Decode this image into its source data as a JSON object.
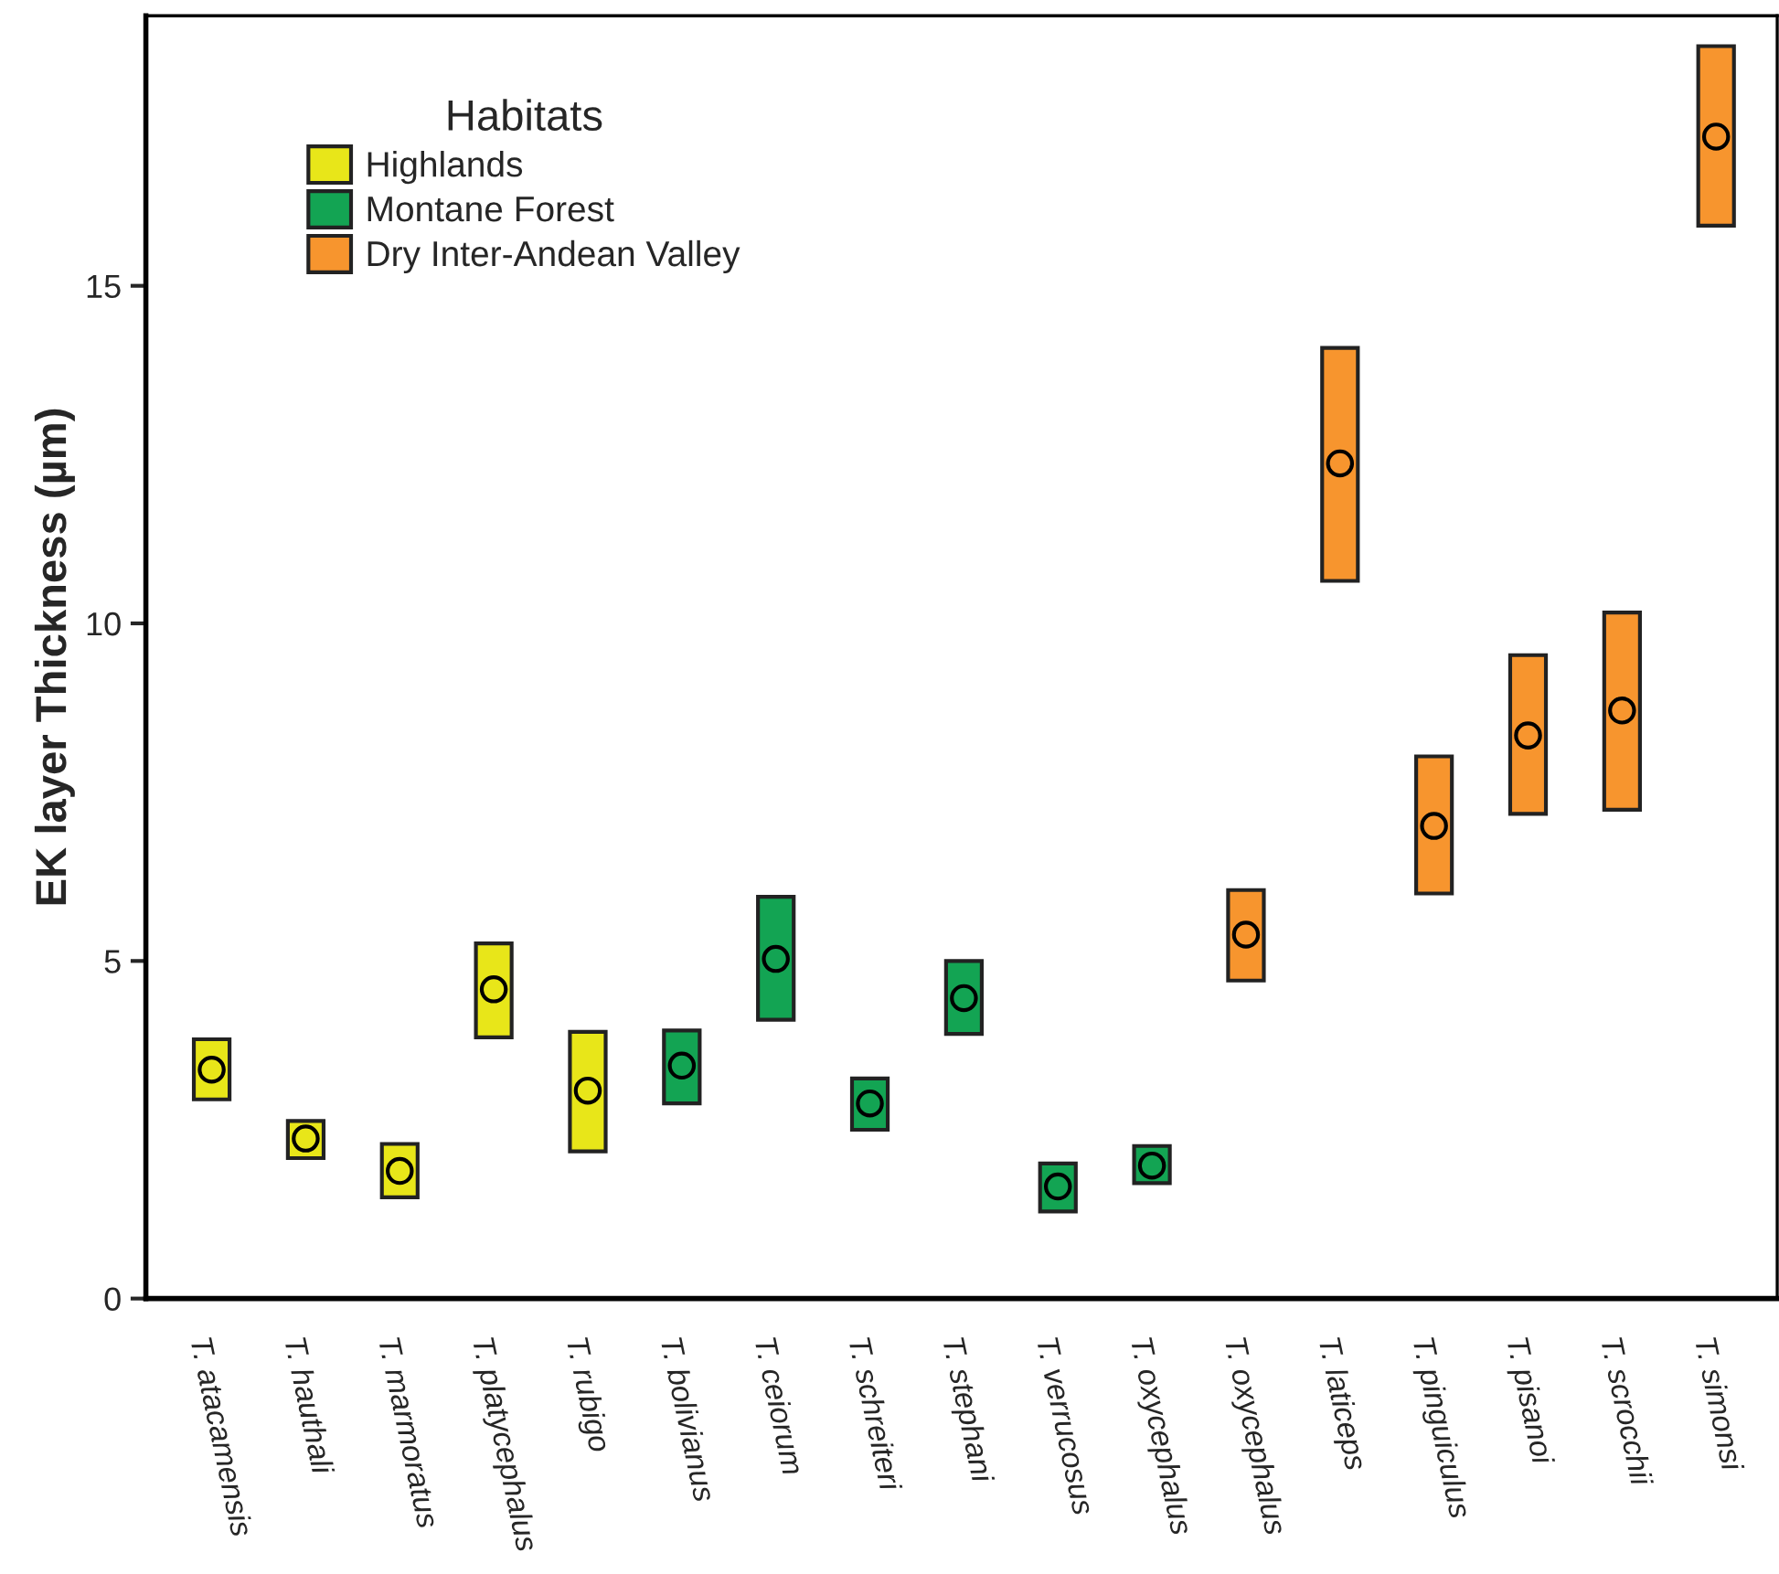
{
  "chart_data": {
    "type": "bar",
    "ylabel": "EK layer Thickness (µm)",
    "legend_title": "Habitats",
    "legend": "top left",
    "grid": false,
    "categories": [
      "T. atacamensis",
      "T. hauthali",
      "T. marmoratus",
      "T. platycephalus",
      "T. rubigo",
      "T. bolivianus",
      "T. ceiorum",
      "T. schreiteri",
      "T. stephani",
      "T. verrucosus",
      "T. oxycephalus",
      "T. oxycephalus",
      "T. laticeps",
      "T. pinguiculus",
      "T. pisanoi",
      "T. scrocchii",
      "T. simonsi"
    ],
    "ylim": [
      0,
      19
    ],
    "yticks": [
      0,
      5,
      10,
      15
    ],
    "series": [
      {
        "name": "Highlands",
        "color": "#e8e619",
        "base": [
          2.95,
          2.08,
          1.5,
          3.87,
          2.18,
          null,
          null,
          null,
          null,
          null,
          null,
          null,
          null,
          null,
          null,
          null,
          null
        ],
        "values": [
          0.89,
          0.55,
          0.79,
          1.39,
          1.77,
          null,
          null,
          null,
          null,
          null,
          null,
          null,
          null,
          null,
          null,
          null,
          null
        ]
      },
      {
        "name": "Montane Forest",
        "color": "#13a453",
        "base": [
          null,
          null,
          null,
          null,
          null,
          2.89,
          4.13,
          2.5,
          3.92,
          1.29,
          1.71,
          null,
          null,
          null,
          null,
          null,
          null
        ],
        "values": [
          null,
          null,
          null,
          null,
          null,
          1.08,
          1.82,
          0.76,
          1.08,
          0.71,
          0.55,
          null,
          null,
          null,
          null,
          null,
          null
        ]
      },
      {
        "name": "Dry Inter-Andean Valley",
        "color": "#f7952e",
        "base": [
          null,
          null,
          null,
          null,
          null,
          null,
          null,
          null,
          null,
          null,
          null,
          4.71,
          10.63,
          6.0,
          7.18,
          7.24,
          15.89
        ],
        "values": [
          null,
          null,
          null,
          null,
          null,
          null,
          null,
          null,
          null,
          null,
          null,
          1.34,
          3.45,
          2.03,
          2.35,
          2.92,
          2.66
        ]
      },
      {
        "type": "scatter",
        "marker": "circle",
        "color": "#000000",
        "values": [
          3.39,
          2.37,
          1.89,
          4.58,
          3.08,
          3.45,
          5.03,
          2.89,
          4.45,
          1.66,
          1.97,
          5.39,
          12.37,
          7.0,
          8.34,
          8.71,
          17.21
        ]
      }
    ]
  }
}
